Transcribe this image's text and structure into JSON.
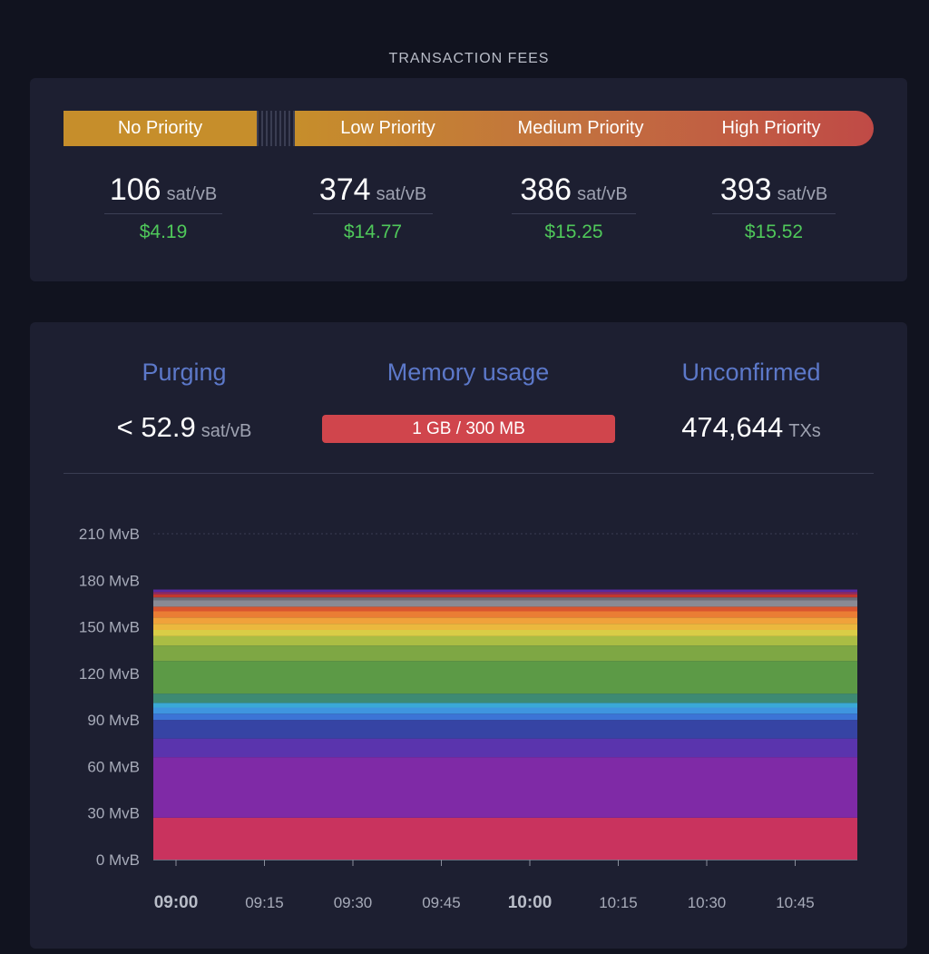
{
  "section_title": "TRANSACTION FEES",
  "priorities": {
    "none": "No Priority",
    "low": "Low Priority",
    "medium": "Medium Priority",
    "high": "High Priority"
  },
  "fees": [
    {
      "value": "106",
      "unit": "sat/vB",
      "usd": "$4.19"
    },
    {
      "value": "374",
      "unit": "sat/vB",
      "usd": "$14.77"
    },
    {
      "value": "386",
      "unit": "sat/vB",
      "usd": "$15.25"
    },
    {
      "value": "393",
      "unit": "sat/vB",
      "usd": "$15.52"
    }
  ],
  "stats": {
    "purging": {
      "title": "Purging",
      "value": "< 52.9",
      "unit": "sat/vB"
    },
    "memory": {
      "title": "Memory usage",
      "value": "1 GB / 300 MB"
    },
    "unconfirmed": {
      "title": "Unconfirmed",
      "value": "474,644",
      "unit": "TXs"
    }
  },
  "colors": {
    "accent_blue": "#5c78c9",
    "fee_green": "#4fc85a",
    "memory_red": "#d0454c"
  },
  "chart_data": {
    "type": "area",
    "stacked": true,
    "y_ticks": [
      "0 MvB",
      "30 MvB",
      "60 MvB",
      "90 MvB",
      "120 MvB",
      "150 MvB",
      "180 MvB",
      "210 MvB"
    ],
    "ylim": [
      0,
      210
    ],
    "x_ticks": [
      {
        "label": "09:00",
        "bold": true
      },
      {
        "label": "09:15",
        "bold": false
      },
      {
        "label": "09:30",
        "bold": false
      },
      {
        "label": "09:45",
        "bold": false
      },
      {
        "label": "10:00",
        "bold": true
      },
      {
        "label": "10:15",
        "bold": false
      },
      {
        "label": "10:30",
        "bold": false
      },
      {
        "label": "10:45",
        "bold": false
      }
    ],
    "layers": [
      {
        "color": "#c9335e",
        "values": [
          27,
          27
        ]
      },
      {
        "color": "#7f2aa6",
        "values": [
          39,
          39
        ]
      },
      {
        "color": "#5a34ad",
        "values": [
          12,
          12
        ]
      },
      {
        "color": "#3644a4",
        "values": [
          12,
          12
        ]
      },
      {
        "color": "#3c74d6",
        "values": [
          4,
          4
        ]
      },
      {
        "color": "#3f95df",
        "values": [
          4,
          4
        ]
      },
      {
        "color": "#3aa9d6",
        "values": [
          3,
          3
        ]
      },
      {
        "color": "#3d8a73",
        "values": [
          6,
          6
        ]
      },
      {
        "color": "#5c9a46",
        "values": [
          21,
          21
        ]
      },
      {
        "color": "#7ea744",
        "values": [
          10,
          10
        ]
      },
      {
        "color": "#aabd44",
        "values": [
          6,
          6
        ]
      },
      {
        "color": "#d9cd46",
        "values": [
          4,
          4
        ]
      },
      {
        "color": "#ebb83e",
        "values": [
          4,
          4
        ]
      },
      {
        "color": "#f0a23b",
        "values": [
          4,
          4
        ]
      },
      {
        "color": "#ea7d34",
        "values": [
          4,
          4
        ]
      },
      {
        "color": "#d9552f",
        "values": [
          3,
          3
        ]
      },
      {
        "color": "#8a8a94",
        "values": [
          4,
          4
        ]
      },
      {
        "color": "#6e6e78",
        "values": [
          2,
          2
        ]
      },
      {
        "color": "#c2372e",
        "values": [
          2,
          2
        ]
      },
      {
        "color": "#8e2a68",
        "values": [
          1.5,
          1.5
        ]
      },
      {
        "color": "#5a2aa0",
        "values": [
          1.5,
          1.5
        ]
      }
    ]
  }
}
